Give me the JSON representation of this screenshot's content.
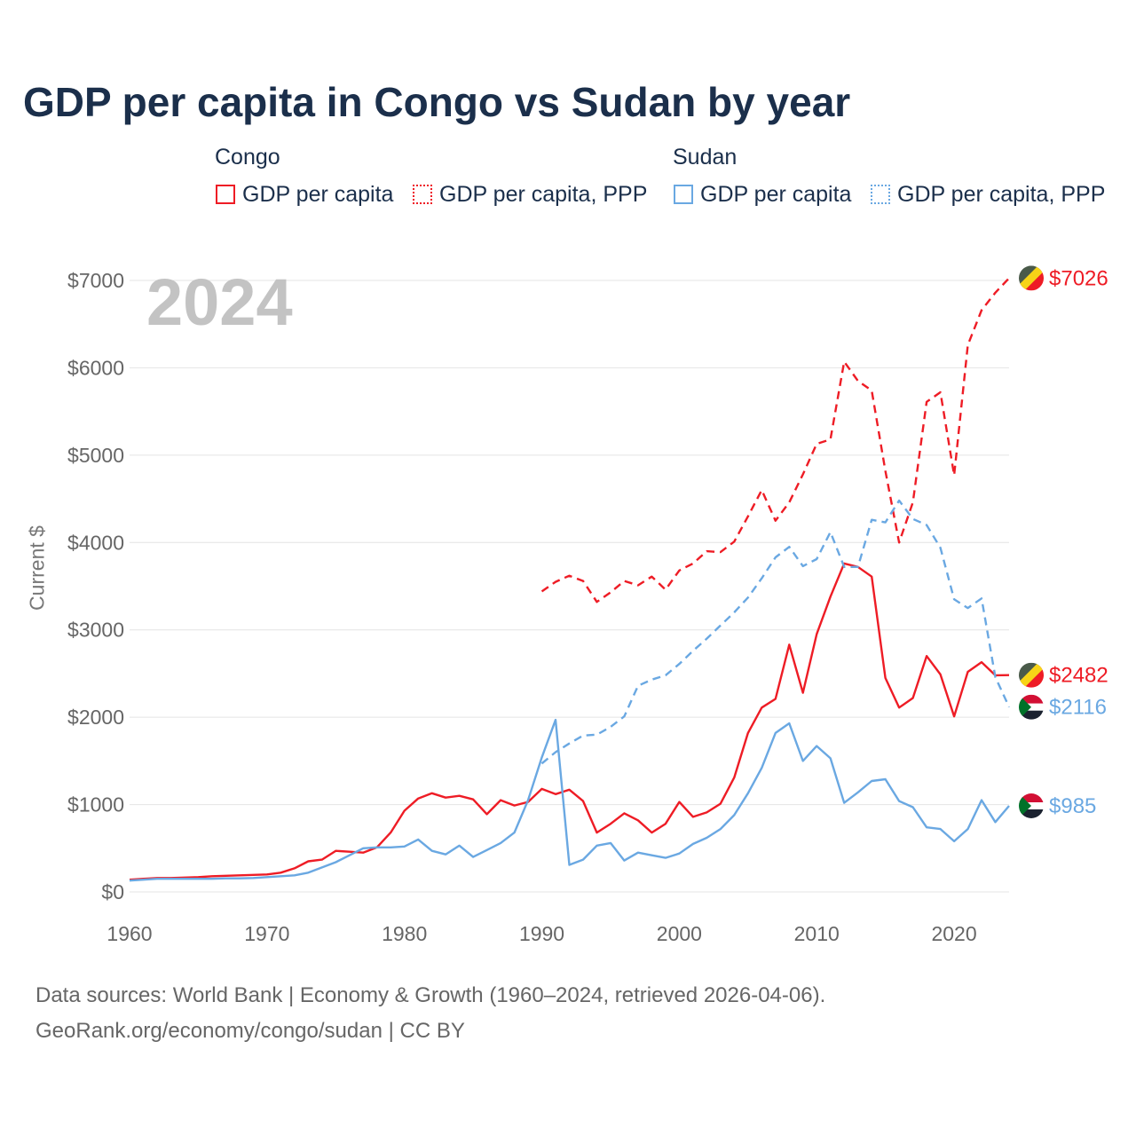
{
  "title": "GDP per capita in Congo vs Sudan by year",
  "legend": {
    "groups": [
      {
        "country": "Congo",
        "items": [
          "GDP per capita",
          "GDP per capita, PPP"
        ]
      },
      {
        "country": "Sudan",
        "items": [
          "GDP per capita",
          "GDP per capita, PPP"
        ]
      }
    ]
  },
  "colors": {
    "congo": "#ee1c25",
    "sudan": "#6aa8e2",
    "grid": "#e4e4e4",
    "text": "#1b2f4b",
    "axis_text": "#666666"
  },
  "year_label": "2024",
  "source_line1": "Data sources: World Bank | Economy & Growth (1960–2024, retrieved 2026-04-06).",
  "source_line2": "GeoRank.org/economy/congo/sudan | CC BY",
  "chart_data": {
    "type": "line",
    "title": "GDP per capita in Congo vs Sudan by year",
    "xlabel": "",
    "ylabel": "Current $",
    "xlim": [
      1960,
      2024
    ],
    "ylim": [
      0,
      7000
    ],
    "x_ticks": [
      1960,
      1970,
      1980,
      1990,
      2000,
      2010,
      2020
    ],
    "x_tick_labels": [
      "1960",
      "1970",
      "1980",
      "1990",
      "2000",
      "2010",
      "2020"
    ],
    "y_ticks": [
      0,
      1000,
      2000,
      3000,
      4000,
      5000,
      6000,
      7000
    ],
    "y_tick_labels": [
      "$0",
      "$1000",
      "$2000",
      "$3000",
      "$4000",
      "$5000",
      "$6000",
      "$7000"
    ],
    "grid": true,
    "series": [
      {
        "name": "Congo GDP per capita",
        "country": "Congo",
        "style": "solid",
        "color": "#ee1c25",
        "start_year": 1960,
        "values": [
          140,
          150,
          160,
          160,
          165,
          170,
          180,
          185,
          190,
          195,
          200,
          220,
          270,
          350,
          370,
          470,
          460,
          450,
          510,
          680,
          930,
          1070,
          1130,
          1080,
          1100,
          1060,
          890,
          1050,
          990,
          1030,
          1180,
          1120,
          1170,
          1040,
          680,
          780,
          900,
          820,
          680,
          780,
          1030,
          860,
          910,
          1010,
          1310,
          1820,
          2110,
          2210,
          2830,
          2280,
          2950,
          3380,
          3760,
          3720,
          3610,
          2450,
          2110,
          2220,
          2700,
          2490,
          2010,
          2520,
          2630,
          2480,
          2482
        ],
        "end_label": "$2482"
      },
      {
        "name": "Congo GDP per capita, PPP",
        "country": "Congo",
        "style": "dashed",
        "color": "#ee1c25",
        "start_year": 1990,
        "values": [
          3440,
          3550,
          3620,
          3560,
          3320,
          3430,
          3560,
          3510,
          3610,
          3460,
          3680,
          3760,
          3900,
          3890,
          4010,
          4300,
          4600,
          4250,
          4460,
          4780,
          5130,
          5180,
          6070,
          5850,
          5740,
          4820,
          4000,
          4460,
          5610,
          5720,
          4770,
          6260,
          6660,
          6860,
          7026
        ],
        "end_label": "$7026"
      },
      {
        "name": "Sudan GDP per capita",
        "country": "Sudan",
        "style": "solid",
        "color": "#6aa8e2",
        "start_year": 1960,
        "values": [
          130,
          140,
          150,
          150,
          150,
          150,
          150,
          155,
          155,
          160,
          170,
          180,
          190,
          220,
          280,
          340,
          420,
          500,
          510,
          510,
          520,
          600,
          470,
          430,
          530,
          400,
          480,
          560,
          680,
          1050,
          1540,
          1970,
          310,
          370,
          530,
          560,
          360,
          450,
          420,
          390,
          440,
          550,
          620,
          720,
          880,
          1130,
          1420,
          1820,
          1930,
          1500,
          1670,
          1530,
          1020,
          1140,
          1270,
          1290,
          1040,
          970,
          740,
          720,
          580,
          720,
          1050,
          800,
          985
        ],
        "end_label": "$985"
      },
      {
        "name": "Sudan GDP per capita, PPP",
        "country": "Sudan",
        "style": "dashed",
        "color": "#6aa8e2",
        "start_year": 1990,
        "values": [
          1470,
          1600,
          1700,
          1790,
          1800,
          1890,
          2010,
          2360,
          2430,
          2480,
          2610,
          2760,
          2900,
          3050,
          3200,
          3370,
          3590,
          3830,
          3950,
          3730,
          3810,
          4120,
          3720,
          3720,
          4260,
          4230,
          4480,
          4270,
          4200,
          3940,
          3350,
          3250,
          3360,
          2460,
          2116
        ],
        "end_label": "$2116"
      }
    ]
  }
}
